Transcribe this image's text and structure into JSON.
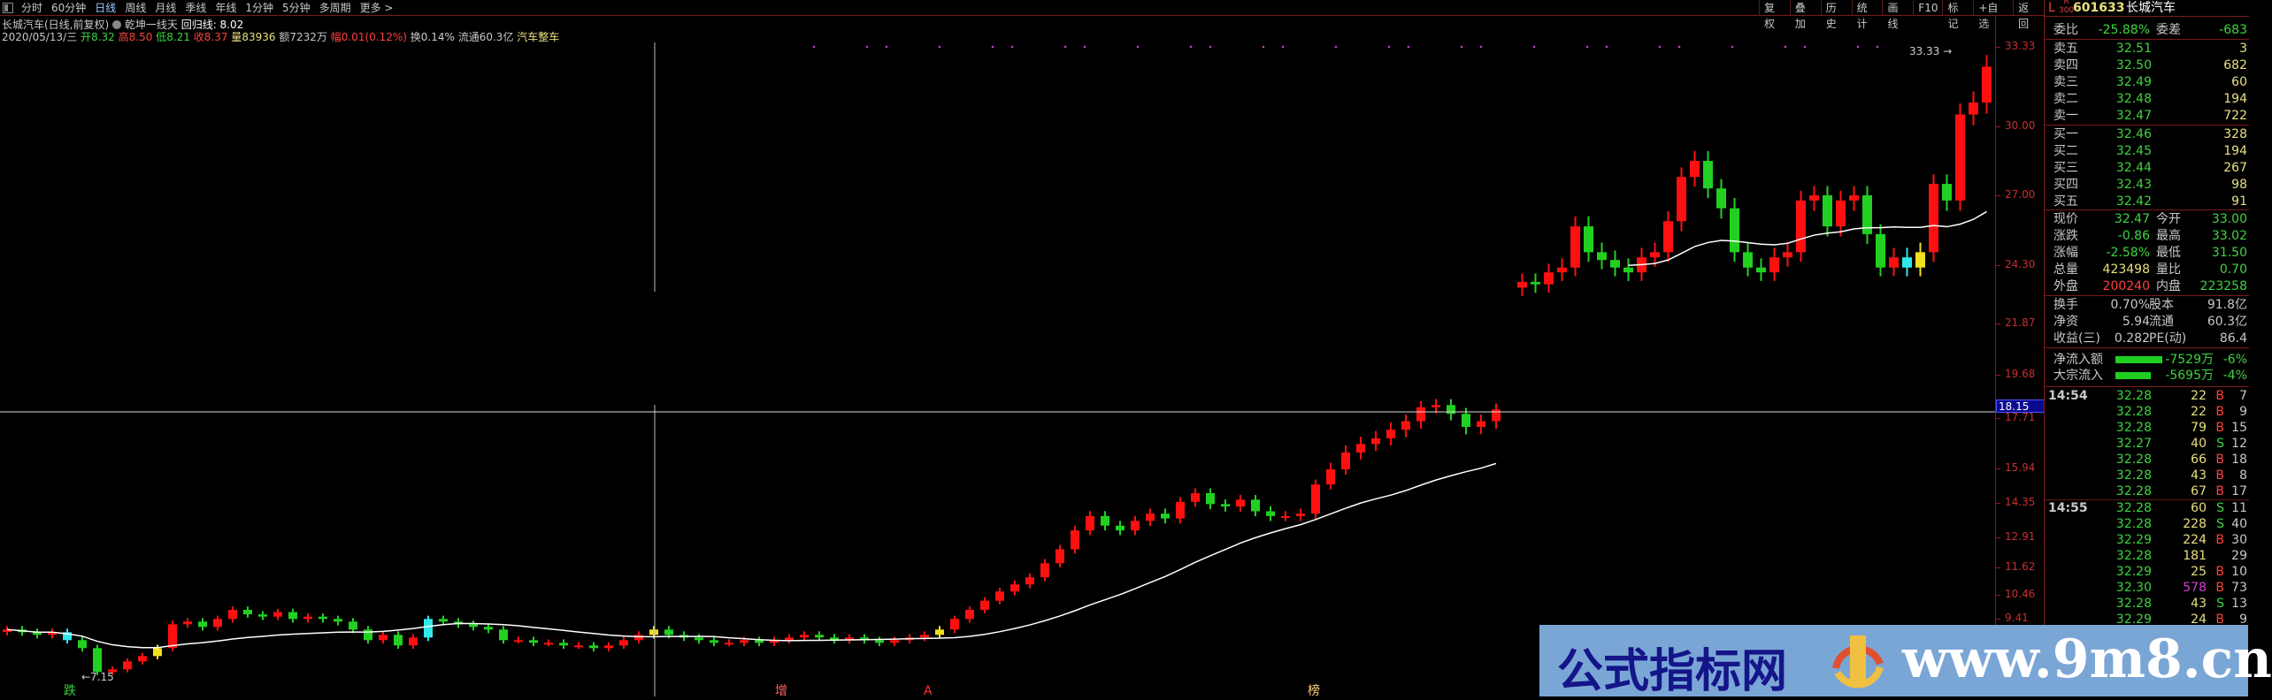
{
  "toolbar": {
    "tabs": [
      "分时",
      "60分钟",
      "日线",
      "周线",
      "月线",
      "季线",
      "年线",
      "1分钟",
      "5分钟",
      "多周期",
      "更多 >"
    ],
    "active": "日线",
    "right_buttons": [
      "复权",
      "叠加",
      "历史",
      "统计",
      "画线",
      "F10",
      "标记",
      "+自选",
      "返回"
    ]
  },
  "info": {
    "title": "长城汽车(日线,前复权)",
    "indicator": "乾坤一线天",
    "regression_label": "回归线: 8.02",
    "date": "2020/05/13/三",
    "open_label": "开",
    "open": "8.32",
    "high_label": "高",
    "high": "8.50",
    "low_label": "低",
    "low": "8.21",
    "close_label": "收",
    "close": "8.37",
    "vol_label": "量",
    "vol": "83936",
    "amount_label": "额",
    "amount": "7232万",
    "chg_label": "幅",
    "chg": "0.01(0.12%)",
    "turnover": "换0.14%",
    "float": "流通60.3亿",
    "sector": "汽车整车"
  },
  "quote": {
    "prefix": "L",
    "badge_top": "R",
    "badge_bottom": "300",
    "code": "601633",
    "name": "长城汽车",
    "weibi_label": "委比",
    "weibi": "-25.88%",
    "weicha_label": "委差",
    "weicha": "-683",
    "asks": [
      {
        "label": "卖五",
        "price": "32.51",
        "vol": "3"
      },
      {
        "label": "卖四",
        "price": "32.50",
        "vol": "682"
      },
      {
        "label": "卖三",
        "price": "32.49",
        "vol": "60"
      },
      {
        "label": "卖二",
        "price": "32.48",
        "vol": "194"
      },
      {
        "label": "卖一",
        "price": "32.47",
        "vol": "722"
      }
    ],
    "bids": [
      {
        "label": "买一",
        "price": "32.46",
        "vol": "328"
      },
      {
        "label": "买二",
        "price": "32.45",
        "vol": "194"
      },
      {
        "label": "买三",
        "price": "32.44",
        "vol": "267"
      },
      {
        "label": "买四",
        "price": "32.43",
        "vol": "98"
      },
      {
        "label": "买五",
        "price": "32.42",
        "vol": "91"
      }
    ],
    "stats": [
      {
        "l1": "现价",
        "v1": "32.47",
        "c1": "g",
        "l2": "今开",
        "v2": "33.00",
        "c2": "g"
      },
      {
        "l1": "涨跌",
        "v1": "-0.86",
        "c1": "g",
        "l2": "最高",
        "v2": "33.02",
        "c2": "g"
      },
      {
        "l1": "涨幅",
        "v1": "-2.58%",
        "c1": "g",
        "l2": "最低",
        "v2": "31.50",
        "c2": "g"
      },
      {
        "l1": "总量",
        "v1": "423498",
        "c1": "y",
        "l2": "量比",
        "v2": "0.70",
        "c2": "g"
      },
      {
        "l1": "外盘",
        "v1": "200240",
        "c1": "r",
        "l2": "内盘",
        "v2": "223258",
        "c2": "g"
      }
    ],
    "stats2": [
      {
        "l1": "换手",
        "v1": "0.70%",
        "l2": "股本",
        "v2": "91.8亿"
      },
      {
        "l1": "净资",
        "v1": "5.94",
        "l2": "流通",
        "v2": "60.3亿"
      },
      {
        "l1": "收益(三)",
        "v1": "0.282",
        "l2": "PE(动)",
        "v2": "86.4"
      }
    ],
    "flows": [
      {
        "label": "净流入额",
        "value": "-7529万",
        "pct": "-6%",
        "bar": 0.7
      },
      {
        "label": "大宗流入",
        "value": "-5695万",
        "pct": "-4%",
        "bar": 0.53
      }
    ]
  },
  "ticks": [
    {
      "time": "14:54",
      "price": "32.28",
      "vol": "22",
      "side": "B",
      "n": "7"
    },
    {
      "time": "",
      "price": "32.28",
      "vol": "22",
      "side": "B",
      "n": "9"
    },
    {
      "time": "",
      "price": "32.28",
      "vol": "79",
      "side": "B",
      "n": "15"
    },
    {
      "time": "",
      "price": "32.27",
      "vol": "40",
      "side": "S",
      "n": "12"
    },
    {
      "time": "",
      "price": "32.28",
      "vol": "66",
      "side": "B",
      "n": "18"
    },
    {
      "time": "",
      "price": "32.28",
      "vol": "43",
      "side": "B",
      "n": "8"
    },
    {
      "time": "",
      "price": "32.28",
      "vol": "67",
      "side": "B",
      "n": "17"
    },
    {
      "time": "14:55",
      "price": "32.28",
      "vol": "60",
      "side": "S",
      "n": "11"
    },
    {
      "time": "",
      "price": "32.28",
      "vol": "228",
      "side": "S",
      "n": "40"
    },
    {
      "time": "",
      "price": "32.29",
      "vol": "224",
      "side": "B",
      "n": "30"
    },
    {
      "time": "",
      "price": "32.28",
      "vol": "181",
      "side": "",
      "n": "29"
    },
    {
      "time": "",
      "price": "32.29",
      "vol": "25",
      "side": "B",
      "n": "10"
    },
    {
      "time": "",
      "price": "32.30",
      "vol": "578",
      "side": "B",
      "n": "73",
      "big": true
    },
    {
      "time": "",
      "price": "32.28",
      "vol": "43",
      "side": "S",
      "n": "13"
    },
    {
      "time": "",
      "price": "32.29",
      "vol": "24",
      "side": "B",
      "n": "9"
    }
  ],
  "chart_data": {
    "type": "candlestick",
    "y_ticks": [
      "33.33",
      "30.00",
      "27.00",
      "24.30",
      "21.87",
      "19.68",
      "17.71",
      "15.94",
      "14.35",
      "12.91",
      "11.62",
      "10.46",
      "9.41"
    ],
    "crosshair_value": "18.15",
    "max_label": "33.33",
    "min_label": "7.15",
    "closes_lower": [
      9.0,
      8.9,
      8.8,
      8.9,
      8.6,
      8.3,
      7.4,
      7.5,
      7.8,
      8.0,
      8.3,
      9.2,
      9.3,
      9.1,
      9.4,
      9.8,
      9.6,
      9.5,
      9.7,
      9.4,
      9.5,
      9.4,
      9.3,
      9.0,
      8.6,
      8.8,
      8.4,
      8.7,
      9.4,
      9.3,
      9.2,
      9.1,
      9.0,
      8.6,
      8.6,
      8.5,
      8.5,
      8.4,
      8.4,
      8.3,
      8.4,
      8.6,
      8.8,
      9.0,
      8.8,
      8.7,
      8.6,
      8.5,
      8.5,
      8.6,
      8.5,
      8.6,
      8.7,
      8.8,
      8.7,
      8.6,
      8.7,
      8.6,
      8.5,
      8.6,
      8.7,
      8.8,
      9.0,
      9.4,
      9.8,
      10.2,
      10.6,
      10.9,
      11.2,
      11.8,
      12.4,
      13.2,
      13.8,
      13.4,
      13.2,
      13.6,
      13.9,
      13.7,
      14.4,
      14.8,
      14.3,
      14.2,
      14.5,
      14.0,
      13.8,
      13.8,
      13.9,
      15.2,
      15.9,
      16.5,
      16.8,
      17.0,
      17.3,
      17.6,
      18.2,
      18.3,
      17.9,
      17.4,
      17.6,
      18.1
    ],
    "closes_upper": [
      23.6,
      23.5,
      24.0,
      24.2,
      25.8,
      24.8,
      24.5,
      24.2,
      24.0,
      24.6,
      24.8,
      26.0,
      27.8,
      28.5,
      27.3,
      26.5,
      24.8,
      24.2,
      24.0,
      24.6,
      24.8,
      26.8,
      27.0,
      25.8,
      26.8,
      27.0,
      25.5,
      24.2,
      24.6,
      24.2,
      24.8,
      27.5,
      26.8,
      30.5,
      31.0,
      32.5
    ],
    "highlight": {
      "yellow": [
        10,
        43,
        62
      ],
      "cyan": [
        4,
        28
      ]
    },
    "bottom_marks": [
      {
        "text": "跌",
        "color": "#3fd43f"
      },
      {
        "text": "增",
        "color": "#ff6060"
      },
      {
        "text": "A",
        "color": "#ff3030"
      },
      {
        "text": "榜",
        "color": "#ffd080"
      }
    ]
  },
  "watermark": {
    "cn": "公式指标网",
    "url": "www.9m8.cn"
  }
}
